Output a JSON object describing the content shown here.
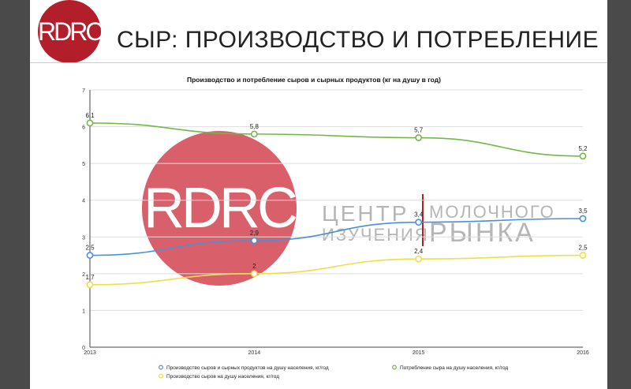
{
  "slide": {
    "logo_text": "RDRC",
    "title": "СЫР: ПРОИЗВОДСТВО И ПОТРЕБЛЕНИЕ"
  },
  "watermark": {
    "logo_text": "RDRC",
    "line1_left": "ЦЕНТР",
    "line1_right": "МОЛОЧНОГО",
    "line2_left": "ИЗУЧЕНИЯ",
    "line2_right": "РЫНКА"
  },
  "colors": {
    "brand_red": "#b31e2b",
    "watermark_circle": "#d9606b",
    "series_blue": "#4a90d9",
    "series_green": "#72b943",
    "series_yellow": "#f2dc4a"
  },
  "chart_data": {
    "type": "line",
    "title": "Производство и потребление сыров и сырных продуктов (кг на душу в год)",
    "x": [
      "2013",
      "2014",
      "2015",
      "2016"
    ],
    "ylim": [
      0,
      7
    ],
    "yticks": [
      "0",
      "1",
      "2",
      "3",
      "4",
      "5",
      "6",
      "7"
    ],
    "grid": true,
    "legend_position": "bottom",
    "series": [
      {
        "name": "Производство сыров и сырных продуктов на душу населения, кг/год",
        "values": [
          2.5,
          2.9,
          3.4,
          3.5
        ],
        "labels": [
          "2,5",
          "2,9",
          "3,4",
          "3,5"
        ],
        "color": "#4a90d9"
      },
      {
        "name": "Потребление сыра на душу населения, кг/год",
        "values": [
          6.1,
          5.8,
          5.7,
          5.2
        ],
        "labels": [
          "6,1",
          "5,8",
          "5,7",
          "5,2"
        ],
        "color": "#72b943"
      },
      {
        "name": "Производство сыров на душу населения, кг/год",
        "values": [
          1.7,
          2.0,
          2.4,
          2.5
        ],
        "labels": [
          "1,7",
          "2",
          "2,4",
          "2,5"
        ],
        "color": "#f2dc4a"
      }
    ]
  }
}
